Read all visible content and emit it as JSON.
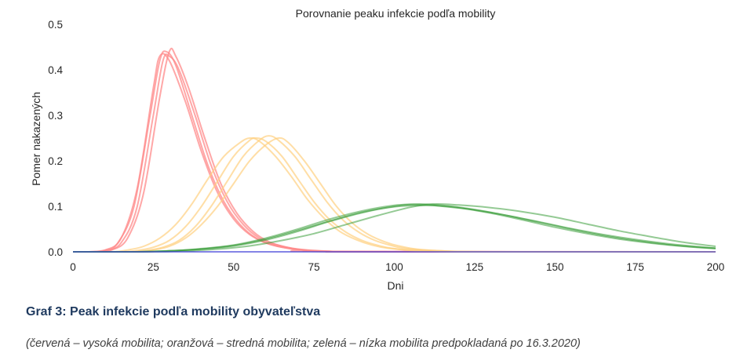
{
  "chart_data": {
    "type": "line",
    "title": "Porovnanie peaku infekcie podľa mobility",
    "xlabel": "Dni",
    "ylabel": "Pomer nakazených",
    "xlim": [
      0,
      200
    ],
    "ylim": [
      0,
      0.5
    ],
    "xticks": [
      0,
      25,
      50,
      75,
      100,
      125,
      150,
      175,
      200
    ],
    "yticks": [
      "0.0",
      "0.1",
      "0.2",
      "0.3",
      "0.4",
      "0.5"
    ],
    "grid": false,
    "legend": "none",
    "colors": {
      "high": "#ff8a8a",
      "medium": "#ffd080",
      "low": "#3c9e3c",
      "baseline": "#3b3bd6"
    },
    "series": [
      {
        "group": "high",
        "values": [
          [
            0,
            0
          ],
          [
            5,
            0
          ],
          [
            10,
            0.004
          ],
          [
            15,
            0.03
          ],
          [
            20,
            0.14
          ],
          [
            25,
            0.36
          ],
          [
            27,
            0.43
          ],
          [
            30,
            0.42
          ],
          [
            35,
            0.33
          ],
          [
            40,
            0.22
          ],
          [
            45,
            0.13
          ],
          [
            50,
            0.072
          ],
          [
            55,
            0.038
          ],
          [
            60,
            0.02
          ],
          [
            65,
            0.01
          ],
          [
            70,
            0.005
          ],
          [
            80,
            0.001
          ],
          [
            90,
            0
          ],
          [
            200,
            0
          ]
        ]
      },
      {
        "group": "high",
        "values": [
          [
            0,
            0
          ],
          [
            5,
            0
          ],
          [
            10,
            0.002
          ],
          [
            15,
            0.02
          ],
          [
            20,
            0.1
          ],
          [
            25,
            0.3
          ],
          [
            28,
            0.42
          ],
          [
            30,
            0.43
          ],
          [
            33,
            0.4
          ],
          [
            38,
            0.3
          ],
          [
            43,
            0.19
          ],
          [
            48,
            0.11
          ],
          [
            53,
            0.06
          ],
          [
            58,
            0.03
          ],
          [
            63,
            0.016
          ],
          [
            70,
            0.006
          ],
          [
            80,
            0.001
          ],
          [
            90,
            0
          ],
          [
            200,
            0
          ]
        ]
      },
      {
        "group": "high",
        "values": [
          [
            0,
            0
          ],
          [
            8,
            0
          ],
          [
            12,
            0.004
          ],
          [
            17,
            0.03
          ],
          [
            22,
            0.13
          ],
          [
            27,
            0.34
          ],
          [
            30,
            0.44
          ],
          [
            32,
            0.43
          ],
          [
            36,
            0.36
          ],
          [
            41,
            0.25
          ],
          [
            46,
            0.15
          ],
          [
            51,
            0.085
          ],
          [
            56,
            0.045
          ],
          [
            61,
            0.022
          ],
          [
            66,
            0.011
          ],
          [
            72,
            0.004
          ],
          [
            85,
            0
          ],
          [
            200,
            0
          ]
        ]
      },
      {
        "group": "high",
        "values": [
          [
            0,
            0
          ],
          [
            6,
            0
          ],
          [
            10,
            0.003
          ],
          [
            14,
            0.02
          ],
          [
            19,
            0.1
          ],
          [
            24,
            0.3
          ],
          [
            27,
            0.42
          ],
          [
            29,
            0.44
          ],
          [
            32,
            0.41
          ],
          [
            37,
            0.3
          ],
          [
            42,
            0.19
          ],
          [
            47,
            0.11
          ],
          [
            52,
            0.06
          ],
          [
            57,
            0.03
          ],
          [
            62,
            0.015
          ],
          [
            70,
            0.005
          ],
          [
            80,
            0.001
          ],
          [
            200,
            0
          ]
        ]
      },
      {
        "group": "medium",
        "values": [
          [
            0,
            0
          ],
          [
            15,
            0
          ],
          [
            20,
            0.003
          ],
          [
            25,
            0.01
          ],
          [
            30,
            0.025
          ],
          [
            35,
            0.055
          ],
          [
            40,
            0.1
          ],
          [
            45,
            0.155
          ],
          [
            50,
            0.21
          ],
          [
            55,
            0.245
          ],
          [
            57,
            0.25
          ],
          [
            60,
            0.243
          ],
          [
            65,
            0.21
          ],
          [
            70,
            0.16
          ],
          [
            75,
            0.11
          ],
          [
            80,
            0.07
          ],
          [
            85,
            0.043
          ],
          [
            90,
            0.025
          ],
          [
            95,
            0.014
          ],
          [
            100,
            0.007
          ],
          [
            110,
            0.002
          ],
          [
            125,
            0
          ],
          [
            200,
            0
          ]
        ]
      },
      {
        "group": "medium",
        "values": [
          [
            0,
            0
          ],
          [
            18,
            0
          ],
          [
            23,
            0.003
          ],
          [
            28,
            0.01
          ],
          [
            33,
            0.025
          ],
          [
            38,
            0.055
          ],
          [
            43,
            0.1
          ],
          [
            48,
            0.155
          ],
          [
            53,
            0.21
          ],
          [
            58,
            0.245
          ],
          [
            61,
            0.255
          ],
          [
            64,
            0.245
          ],
          [
            69,
            0.21
          ],
          [
            74,
            0.16
          ],
          [
            79,
            0.11
          ],
          [
            84,
            0.07
          ],
          [
            89,
            0.043
          ],
          [
            94,
            0.025
          ],
          [
            99,
            0.014
          ],
          [
            104,
            0.007
          ],
          [
            115,
            0.002
          ],
          [
            130,
            0
          ],
          [
            200,
            0
          ]
        ]
      },
      {
        "group": "medium",
        "values": [
          [
            0,
            0
          ],
          [
            12,
            0
          ],
          [
            17,
            0.004
          ],
          [
            22,
            0.012
          ],
          [
            27,
            0.03
          ],
          [
            32,
            0.06
          ],
          [
            37,
            0.105
          ],
          [
            42,
            0.16
          ],
          [
            47,
            0.21
          ],
          [
            52,
            0.24
          ],
          [
            55,
            0.25
          ],
          [
            58,
            0.243
          ],
          [
            63,
            0.21
          ],
          [
            68,
            0.165
          ],
          [
            73,
            0.115
          ],
          [
            78,
            0.075
          ],
          [
            83,
            0.045
          ],
          [
            88,
            0.027
          ],
          [
            93,
            0.015
          ],
          [
            98,
            0.008
          ],
          [
            108,
            0.002
          ],
          [
            125,
            0
          ],
          [
            200,
            0
          ]
        ]
      },
      {
        "group": "medium",
        "values": [
          [
            0,
            0
          ],
          [
            20,
            0
          ],
          [
            25,
            0.004
          ],
          [
            30,
            0.012
          ],
          [
            35,
            0.03
          ],
          [
            40,
            0.06
          ],
          [
            45,
            0.1
          ],
          [
            50,
            0.15
          ],
          [
            55,
            0.2
          ],
          [
            60,
            0.235
          ],
          [
            64,
            0.25
          ],
          [
            67,
            0.24
          ],
          [
            72,
            0.2
          ],
          [
            77,
            0.15
          ],
          [
            82,
            0.1
          ],
          [
            87,
            0.063
          ],
          [
            92,
            0.038
          ],
          [
            97,
            0.022
          ],
          [
            102,
            0.012
          ],
          [
            110,
            0.004
          ],
          [
            130,
            0
          ],
          [
            200,
            0
          ]
        ]
      },
      {
        "group": "low",
        "values": [
          [
            0,
            0
          ],
          [
            20,
            0
          ],
          [
            30,
            0.002
          ],
          [
            40,
            0.006
          ],
          [
            50,
            0.013
          ],
          [
            60,
            0.026
          ],
          [
            70,
            0.045
          ],
          [
            80,
            0.067
          ],
          [
            90,
            0.086
          ],
          [
            100,
            0.1
          ],
          [
            105,
            0.104
          ],
          [
            110,
            0.103
          ],
          [
            120,
            0.097
          ],
          [
            130,
            0.085
          ],
          [
            140,
            0.07
          ],
          [
            150,
            0.054
          ],
          [
            160,
            0.04
          ],
          [
            170,
            0.028
          ],
          [
            180,
            0.019
          ],
          [
            190,
            0.012
          ],
          [
            200,
            0.007
          ]
        ]
      },
      {
        "group": "low",
        "values": [
          [
            0,
            0
          ],
          [
            20,
            0
          ],
          [
            30,
            0.002
          ],
          [
            40,
            0.007
          ],
          [
            50,
            0.015
          ],
          [
            60,
            0.03
          ],
          [
            70,
            0.05
          ],
          [
            80,
            0.072
          ],
          [
            90,
            0.09
          ],
          [
            100,
            0.102
          ],
          [
            108,
            0.105
          ],
          [
            115,
            0.102
          ],
          [
            125,
            0.093
          ],
          [
            135,
            0.08
          ],
          [
            145,
            0.065
          ],
          [
            155,
            0.05
          ],
          [
            165,
            0.036
          ],
          [
            175,
            0.025
          ],
          [
            185,
            0.016
          ],
          [
            195,
            0.01
          ],
          [
            200,
            0.008
          ]
        ]
      },
      {
        "group": "low",
        "values": [
          [
            0,
            0
          ],
          [
            25,
            0
          ],
          [
            35,
            0.002
          ],
          [
            45,
            0.006
          ],
          [
            55,
            0.013
          ],
          [
            65,
            0.025
          ],
          [
            75,
            0.04
          ],
          [
            85,
            0.06
          ],
          [
            95,
            0.08
          ],
          [
            105,
            0.098
          ],
          [
            112,
            0.105
          ],
          [
            120,
            0.103
          ],
          [
            130,
            0.097
          ],
          [
            140,
            0.088
          ],
          [
            150,
            0.076
          ],
          [
            160,
            0.061
          ],
          [
            170,
            0.046
          ],
          [
            180,
            0.033
          ],
          [
            190,
            0.021
          ],
          [
            200,
            0.012
          ]
        ]
      },
      {
        "group": "low",
        "values": [
          [
            0,
            0
          ],
          [
            20,
            0
          ],
          [
            30,
            0.002
          ],
          [
            40,
            0.006
          ],
          [
            50,
            0.014
          ],
          [
            60,
            0.028
          ],
          [
            70,
            0.047
          ],
          [
            80,
            0.068
          ],
          [
            90,
            0.087
          ],
          [
            100,
            0.099
          ],
          [
            110,
            0.102
          ],
          [
            115,
            0.1
          ],
          [
            125,
            0.092
          ],
          [
            135,
            0.08
          ],
          [
            145,
            0.066
          ],
          [
            155,
            0.051
          ],
          [
            165,
            0.038
          ],
          [
            175,
            0.027
          ],
          [
            185,
            0.018
          ],
          [
            195,
            0.011
          ],
          [
            200,
            0.008
          ]
        ]
      },
      {
        "group": "baseline",
        "values": [
          [
            0,
            0
          ],
          [
            200,
            0
          ]
        ]
      }
    ]
  },
  "caption": {
    "title": "Graf 3: Peak infekcie podľa mobility obyvateľstva",
    "subtitle": "(červená – vysoká mobilita; oranžová – stredná mobilita; zelená – nízka mobilita predpokladaná po 16.3.2020)"
  }
}
